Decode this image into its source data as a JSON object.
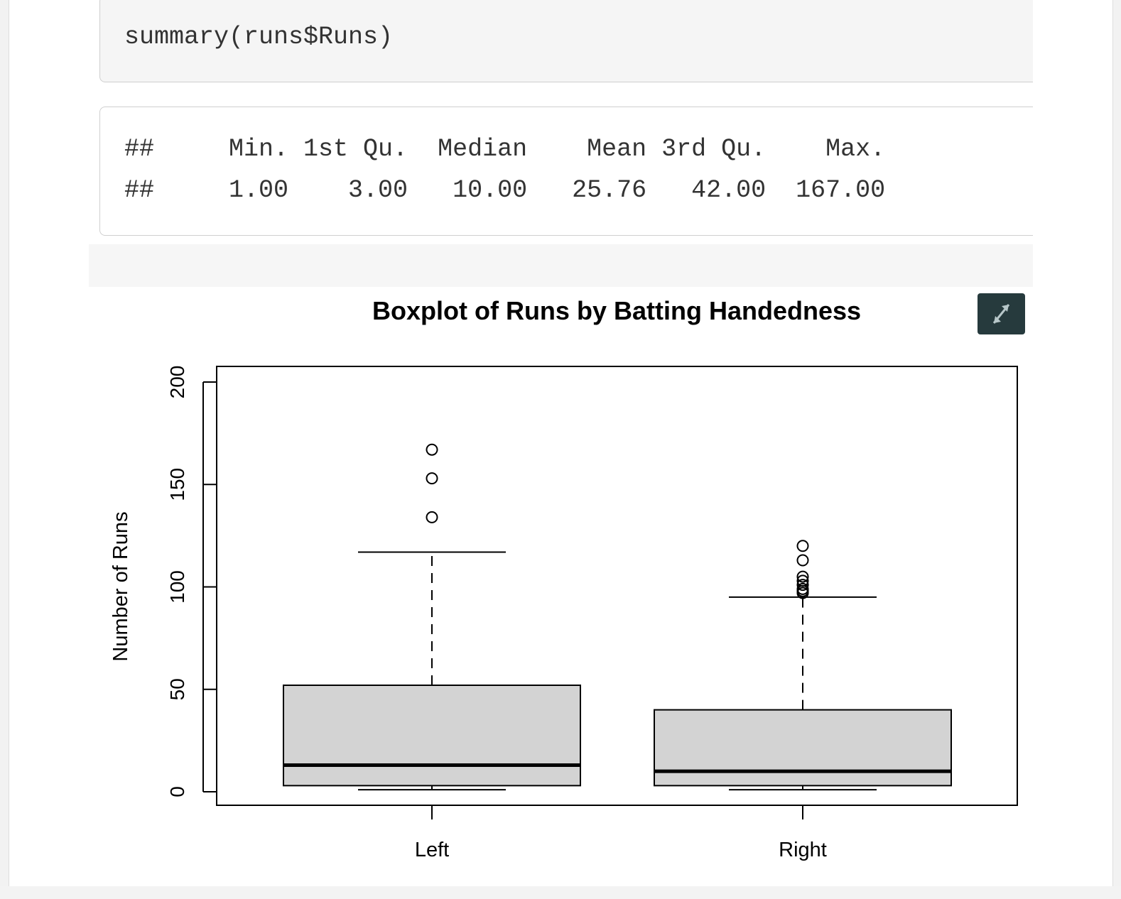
{
  "code": {
    "source": "summary(runs$Runs)"
  },
  "output": {
    "header_line": "##     Min. 1st Qu.  Median    Mean 3rd Qu.    Max. ",
    "values_line": "##     1.00    3.00   10.00   25.76   42.00  167.00 "
  },
  "expand_button": {
    "icon": "expand-arrows-icon"
  },
  "chart_data": {
    "type": "boxplot",
    "title": "Boxplot of Runs by Batting Handedness",
    "ylabel": "Number of Runs",
    "xlabel": "",
    "ylim": [
      0,
      200
    ],
    "yticks": [
      0,
      50,
      100,
      150,
      200
    ],
    "categories": [
      "Left",
      "Right"
    ],
    "boxes": [
      {
        "category": "Left",
        "whisker_low": 1,
        "q1": 3,
        "median": 13,
        "q3": 52,
        "whisker_high": 117,
        "outliers": [
          134,
          153,
          167
        ]
      },
      {
        "category": "Right",
        "whisker_low": 1,
        "q1": 3,
        "median": 10,
        "q3": 40,
        "whisker_high": 95,
        "outliers": [
          97,
          98,
          99,
          101,
          103,
          105,
          113,
          120
        ]
      }
    ],
    "colors": {
      "box_fill": "#d3d3d3",
      "line": "#000000"
    }
  }
}
